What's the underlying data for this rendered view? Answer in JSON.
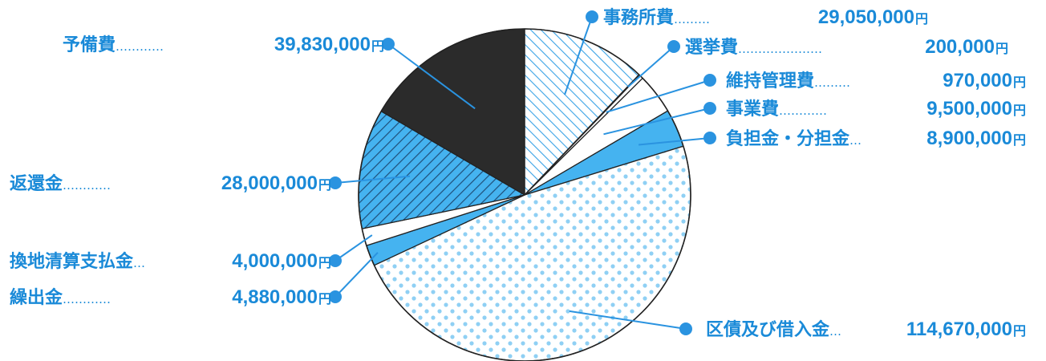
{
  "chart_data": {
    "type": "pie",
    "start": "12 o'clock",
    "direction": "clockwise",
    "slices": [
      {
        "name": "事務所費",
        "dots": "………",
        "value": 29050000,
        "amount_text": "29,050,000",
        "unit": "円",
        "fill": "hatch-white"
      },
      {
        "name": "選挙費",
        "dots": "…………………",
        "value": 200000,
        "amount_text": "200,000",
        "unit": "円",
        "fill": "dark"
      },
      {
        "name": "維持管理費",
        "dots": "………",
        "value": 970000,
        "amount_text": "970,000",
        "unit": "円",
        "fill": "white"
      },
      {
        "name": "事業費",
        "dots": "…………",
        "value": 9500000,
        "amount_text": "9,500,000",
        "unit": "円",
        "fill": "white"
      },
      {
        "name": "負担金・分担金",
        "dots": "…",
        "value": 8900000,
        "amount_text": "8,900,000",
        "unit": "円",
        "fill": "blue"
      },
      {
        "name": "区債及び借入金",
        "dots": "…",
        "value": 114670000,
        "amount_text": "114,670,000",
        "unit": "円",
        "fill": "dots-blue"
      },
      {
        "name": "繰出金",
        "dots": "…………",
        "value": 4880000,
        "amount_text": "4,880,000",
        "unit": "円",
        "fill": "blue"
      },
      {
        "name": "換地清算支払金",
        "dots": "…",
        "value": 4000000,
        "amount_text": "4,000,000",
        "unit": "円",
        "fill": "white"
      },
      {
        "name": "返還金",
        "dots": "…………",
        "value": 28000000,
        "amount_text": "28,000,000",
        "unit": "円",
        "fill": "hatch-blue"
      },
      {
        "name": "予備費",
        "dots": "…………",
        "value": 39830000,
        "amount_text": "39,830,000",
        "unit": "円",
        "fill": "dark"
      }
    ]
  },
  "colors": {
    "label_blue": "#1a8ad8",
    "dot_blue": "#2a93e0",
    "slice_blue": "#45b3f0",
    "pale_blue": "#8fd0f4",
    "dark": "#2b2b2b",
    "outline": "#222222"
  }
}
